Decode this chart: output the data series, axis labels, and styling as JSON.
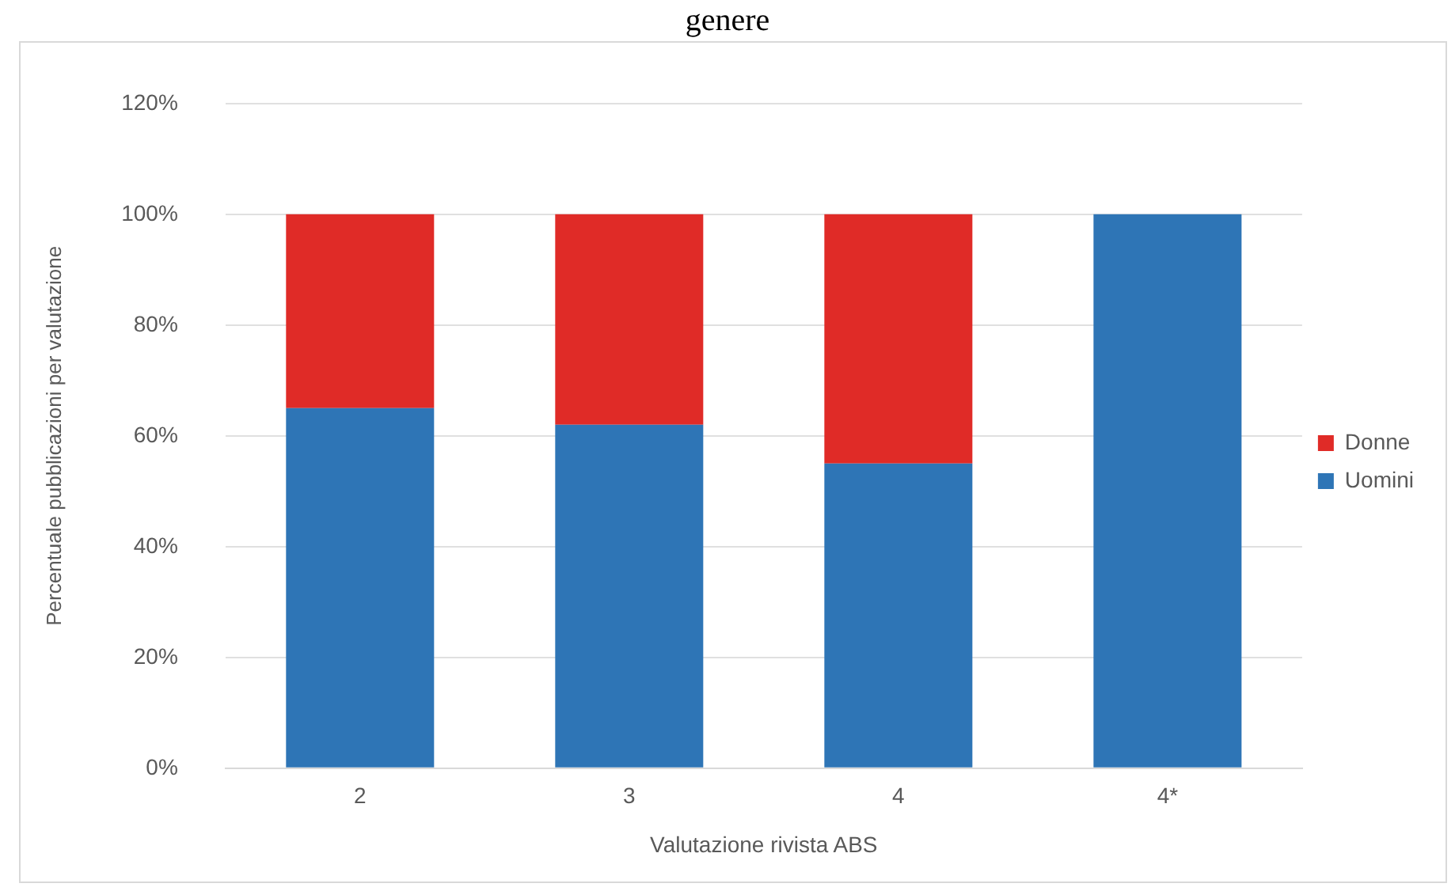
{
  "chart_data": {
    "type": "bar",
    "title": "genere",
    "xlabel": "Valutazione rivista ABS",
    "ylabel": "Percentuale pubblicazioni per valutazione",
    "categories": [
      "2",
      "3",
      "4",
      "4*"
    ],
    "stacked": true,
    "series": [
      {
        "name": "Uomini",
        "color": "#2e75b6",
        "values": [
          65,
          62,
          55,
          100
        ]
      },
      {
        "name": "Donne",
        "color": "#e02b27",
        "values": [
          35,
          38,
          45,
          0
        ]
      }
    ],
    "ylim": [
      0,
      120
    ],
    "yticks": [
      {
        "value": 0,
        "label": "0%"
      },
      {
        "value": 20,
        "label": "20%"
      },
      {
        "value": 40,
        "label": "40%"
      },
      {
        "value": 60,
        "label": "60%"
      },
      {
        "value": 80,
        "label": "80%"
      },
      {
        "value": 100,
        "label": "100%"
      },
      {
        "value": 120,
        "label": "120%"
      }
    ],
    "grid": "y",
    "legend": "right"
  }
}
